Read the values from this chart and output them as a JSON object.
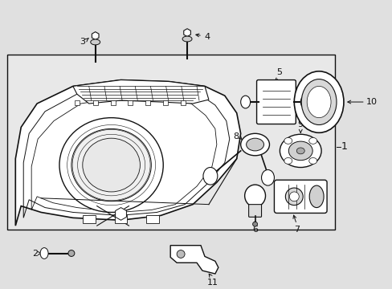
{
  "bg_color": "#e0e0e0",
  "box_bg": "#e8e8e8",
  "line_color": "#111111",
  "fig_w": 4.89,
  "fig_h": 3.6,
  "dpi": 100
}
